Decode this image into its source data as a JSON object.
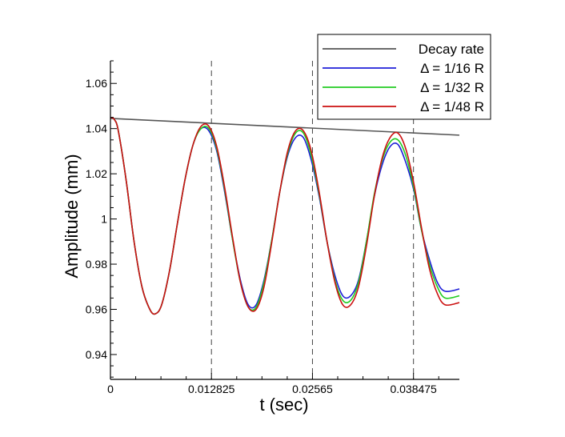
{
  "chart_data": {
    "type": "line",
    "title": "",
    "xlabel": "t (sec)",
    "ylabel": "Amplitude (mm)",
    "xlim": [
      0,
      0.0443
    ],
    "ylim": [
      0.929,
      1.07
    ],
    "x_ticks": [
      0,
      0.012825,
      0.02565,
      0.038475
    ],
    "x_tick_labels": [
      "0",
      "0.012825",
      "0.02565",
      "0.038475"
    ],
    "y_ticks": [
      0.94,
      0.96,
      0.98,
      1,
      1.02,
      1.04,
      1.06
    ],
    "y_tick_labels": [
      "0.94",
      "0.96",
      "0.98",
      "1",
      "1.02",
      "1.04",
      "1.06"
    ],
    "vertical_reference_lines": [
      0.012825,
      0.02565,
      0.038475
    ],
    "legend_position": "top-right",
    "series": [
      {
        "name": "Decay rate",
        "color": "#555555",
        "x": [
          0,
          0.0443
        ],
        "y": [
          1.0445,
          1.0371
        ]
      },
      {
        "name": "Δ = 1/16 R",
        "color": "#1f1fd8",
        "x": [
          0,
          0.0005,
          0.001,
          0.002,
          0.003,
          0.004,
          0.005,
          0.0057,
          0.0065,
          0.0075,
          0.0085,
          0.0095,
          0.0105,
          0.0115,
          0.0125,
          0.0135,
          0.0145,
          0.0155,
          0.0165,
          0.0175,
          0.0185,
          0.0195,
          0.0205,
          0.0215,
          0.0225,
          0.0235,
          0.0245,
          0.0255,
          0.0265,
          0.0275,
          0.0285,
          0.0295,
          0.0305,
          0.0315,
          0.0325,
          0.0335,
          0.0345,
          0.0355,
          0.0365,
          0.0375,
          0.0385,
          0.0395,
          0.0405,
          0.0415,
          0.0425,
          0.0443
        ],
        "y": [
          1.045,
          1.044,
          1.039,
          1.017,
          0.99,
          0.97,
          0.96,
          0.958,
          0.962,
          0.977,
          0.998,
          1.018,
          1.033,
          1.04,
          1.039,
          1.03,
          1.012,
          0.991,
          0.973,
          0.962,
          0.962,
          0.973,
          0.991,
          1.012,
          1.028,
          1.036,
          1.036,
          1.026,
          1.01,
          0.99,
          0.975,
          0.966,
          0.966,
          0.973,
          0.99,
          1.01,
          1.024,
          1.032,
          1.033,
          1.025,
          1.013,
          0.995,
          0.982,
          0.972,
          0.968,
          0.969
        ]
      },
      {
        "name": "Δ = 1/32 R",
        "color": "#22cc22",
        "x": [
          0,
          0.0005,
          0.001,
          0.002,
          0.003,
          0.004,
          0.005,
          0.0057,
          0.0065,
          0.0075,
          0.0085,
          0.0095,
          0.0105,
          0.0115,
          0.0125,
          0.0135,
          0.0145,
          0.0155,
          0.0165,
          0.0175,
          0.0185,
          0.0195,
          0.0205,
          0.0215,
          0.0225,
          0.0235,
          0.0245,
          0.0255,
          0.0265,
          0.0275,
          0.0285,
          0.0295,
          0.0305,
          0.0315,
          0.0325,
          0.0335,
          0.0345,
          0.0355,
          0.0365,
          0.0375,
          0.0385,
          0.0395,
          0.0405,
          0.0415,
          0.0425,
          0.0443
        ],
        "y": [
          1.045,
          1.044,
          1.039,
          1.017,
          0.99,
          0.97,
          0.96,
          0.958,
          0.962,
          0.977,
          0.998,
          1.018,
          1.033,
          1.04,
          1.04,
          1.031,
          1.013,
          0.991,
          0.972,
          0.961,
          0.961,
          0.972,
          0.991,
          1.012,
          1.029,
          1.038,
          1.038,
          1.028,
          1.011,
          0.99,
          0.973,
          0.964,
          0.964,
          0.972,
          0.99,
          1.011,
          1.026,
          1.034,
          1.035,
          1.028,
          1.014,
          0.995,
          0.98,
          0.97,
          0.965,
          0.966
        ]
      },
      {
        "name": "Δ = 1/48 R",
        "color": "#cc1111",
        "x": [
          0,
          0.0005,
          0.001,
          0.002,
          0.003,
          0.004,
          0.005,
          0.0057,
          0.0065,
          0.0075,
          0.0085,
          0.0095,
          0.0105,
          0.0115,
          0.0125,
          0.0135,
          0.0145,
          0.0155,
          0.0165,
          0.0175,
          0.0185,
          0.0195,
          0.0205,
          0.0215,
          0.0225,
          0.0235,
          0.0245,
          0.0255,
          0.0265,
          0.0275,
          0.0285,
          0.0295,
          0.0305,
          0.0315,
          0.0325,
          0.0335,
          0.0345,
          0.0355,
          0.0365,
          0.0375,
          0.0385,
          0.0395,
          0.0405,
          0.0415,
          0.0425,
          0.0443
        ],
        "y": [
          1.045,
          1.044,
          1.039,
          1.017,
          0.99,
          0.97,
          0.96,
          0.958,
          0.962,
          0.977,
          0.998,
          1.018,
          1.033,
          1.041,
          1.041,
          1.032,
          1.014,
          0.992,
          0.972,
          0.961,
          0.96,
          0.97,
          0.99,
          1.012,
          1.03,
          1.039,
          1.039,
          1.03,
          1.012,
          0.99,
          0.972,
          0.962,
          0.962,
          0.97,
          0.988,
          1.01,
          1.027,
          1.036,
          1.038,
          1.031,
          1.016,
          0.996,
          0.978,
          0.967,
          0.962,
          0.963
        ]
      }
    ]
  }
}
